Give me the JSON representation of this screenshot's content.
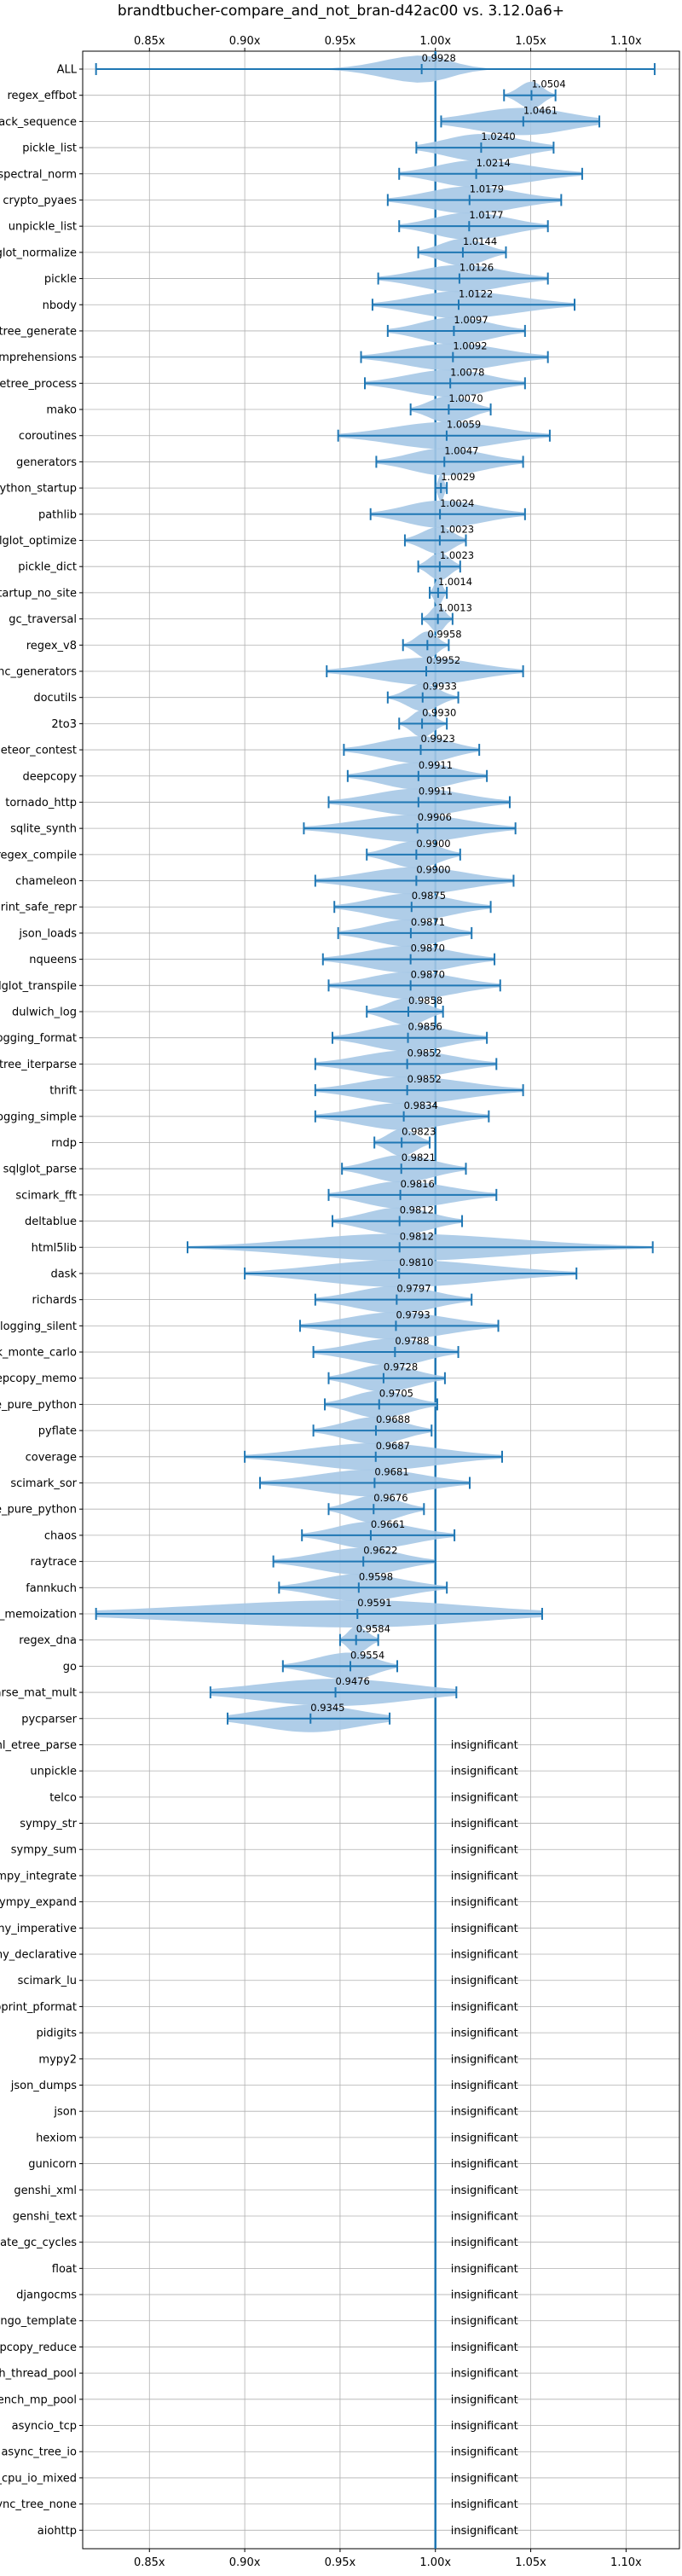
{
  "chart_data": {
    "type": "violin",
    "title": "brandtbucher-compare_and_not_bran-d42ac00 vs. 3.12.0a6+",
    "xlabel": "",
    "ylabel": "",
    "xlim": [
      0.815,
      1.128
    ],
    "x_ticks": [
      {
        "value": 0.85,
        "label": "0.85x"
      },
      {
        "value": 0.9,
        "label": "0.90x"
      },
      {
        "value": 0.95,
        "label": "0.95x"
      },
      {
        "value": 1.0,
        "label": "1.00x"
      },
      {
        "value": 1.05,
        "label": "1.05x"
      },
      {
        "value": 1.1,
        "label": "1.10x"
      }
    ],
    "reference_line": 1.0,
    "grid": true,
    "colors": {
      "line": "#1f77b4",
      "violin": "#a6c8e6",
      "grid": "#b0b0b0",
      "axis": "#000000"
    },
    "insignificant_label": "insignificant",
    "benchmarks": [
      {
        "name": "ALL",
        "mean": 0.9928,
        "label": "0.9928",
        "min": 0.822,
        "max": 1.115,
        "spread": 0.12
      },
      {
        "name": "regex_effbot",
        "mean": 1.0504,
        "label": "1.0504",
        "min": 1.036,
        "max": 1.063,
        "spread": 0.45
      },
      {
        "name": "unpack_sequence",
        "mean": 1.0461,
        "label": "1.0461",
        "min": 1.003,
        "max": 1.086,
        "spread": 0.6
      },
      {
        "name": "pickle_list",
        "mean": 1.024,
        "label": "1.0240",
        "min": 0.99,
        "max": 1.062,
        "spread": 0.55
      },
      {
        "name": "spectral_norm",
        "mean": 1.0214,
        "label": "1.0214",
        "min": 0.981,
        "max": 1.077,
        "spread": 0.5
      },
      {
        "name": "crypto_pyaes",
        "mean": 1.0179,
        "label": "1.0179",
        "min": 0.975,
        "max": 1.066,
        "spread": 0.5
      },
      {
        "name": "unpickle_list",
        "mean": 1.0177,
        "label": "1.0177",
        "min": 0.981,
        "max": 1.059,
        "spread": 0.5
      },
      {
        "name": "sqlglot_normalize",
        "mean": 1.0144,
        "label": "1.0144",
        "min": 0.991,
        "max": 1.037,
        "spread": 0.5
      },
      {
        "name": "pickle",
        "mean": 1.0126,
        "label": "1.0126",
        "min": 0.97,
        "max": 1.059,
        "spread": 0.5
      },
      {
        "name": "nbody",
        "mean": 1.0122,
        "label": "1.0122",
        "min": 0.967,
        "max": 1.073,
        "spread": 0.5
      },
      {
        "name": "xml_etree_generate",
        "mean": 1.0097,
        "label": "1.0097",
        "min": 0.975,
        "max": 1.047,
        "spread": 0.5
      },
      {
        "name": "comprehensions",
        "mean": 1.0092,
        "label": "1.0092",
        "min": 0.961,
        "max": 1.059,
        "spread": 0.5
      },
      {
        "name": "xml_etree_process",
        "mean": 1.0078,
        "label": "1.0078",
        "min": 0.963,
        "max": 1.047,
        "spread": 0.5
      },
      {
        "name": "mako",
        "mean": 1.007,
        "label": "1.0070",
        "min": 0.987,
        "max": 1.029,
        "spread": 0.5
      },
      {
        "name": "coroutines",
        "mean": 1.0059,
        "label": "1.0059",
        "min": 0.949,
        "max": 1.06,
        "spread": 0.5
      },
      {
        "name": "generators",
        "mean": 1.0047,
        "label": "1.0047",
        "min": 0.969,
        "max": 1.046,
        "spread": 0.5
      },
      {
        "name": "python_startup",
        "mean": 1.0029,
        "label": "1.0029",
        "min": 1.0,
        "max": 1.006,
        "spread": 0.45
      },
      {
        "name": "pathlib",
        "mean": 1.0024,
        "label": "1.0024",
        "min": 0.966,
        "max": 1.047,
        "spread": 0.5
      },
      {
        "name": "sqlglot_optimize",
        "mean": 1.0023,
        "label": "1.0023",
        "min": 0.984,
        "max": 1.016,
        "spread": 0.5
      },
      {
        "name": "pickle_dict",
        "mean": 1.0023,
        "label": "1.0023",
        "min": 0.991,
        "max": 1.013,
        "spread": 0.5
      },
      {
        "name": "python_startup_no_site",
        "mean": 1.0014,
        "label": "1.0014",
        "min": 0.997,
        "max": 1.006,
        "spread": 0.45
      },
      {
        "name": "gc_traversal",
        "mean": 1.0013,
        "label": "1.0013",
        "min": 0.993,
        "max": 1.009,
        "spread": 0.45
      },
      {
        "name": "regex_v8",
        "mean": 0.9958,
        "label": "0.9958",
        "min": 0.983,
        "max": 1.007,
        "spread": 0.45
      },
      {
        "name": "async_generators",
        "mean": 0.9952,
        "label": "0.9952",
        "min": 0.943,
        "max": 1.046,
        "spread": 0.5
      },
      {
        "name": "docutils",
        "mean": 0.9933,
        "label": "0.9933",
        "min": 0.975,
        "max": 1.012,
        "spread": 0.45
      },
      {
        "name": "2to3",
        "mean": 0.993,
        "label": "0.9930",
        "min": 0.981,
        "max": 1.006,
        "spread": 0.45
      },
      {
        "name": "meteor_contest",
        "mean": 0.9923,
        "label": "0.9923",
        "min": 0.952,
        "max": 1.023,
        "spread": 0.5
      },
      {
        "name": "deepcopy",
        "mean": 0.9911,
        "label": "0.9911",
        "min": 0.954,
        "max": 1.027,
        "spread": 0.5
      },
      {
        "name": "tornado_http",
        "mean": 0.9911,
        "label": "0.9911",
        "min": 0.944,
        "max": 1.039,
        "spread": 0.5
      },
      {
        "name": "sqlite_synth",
        "mean": 0.9906,
        "label": "0.9906",
        "min": 0.931,
        "max": 1.042,
        "spread": 0.5
      },
      {
        "name": "regex_compile",
        "mean": 0.99,
        "label": "0.9900",
        "min": 0.964,
        "max": 1.013,
        "spread": 0.5
      },
      {
        "name": "chameleon",
        "mean": 0.99,
        "label": "0.9900",
        "min": 0.937,
        "max": 1.041,
        "spread": 0.5
      },
      {
        "name": "pprint_safe_repr",
        "mean": 0.9875,
        "label": "0.9875",
        "min": 0.947,
        "max": 1.029,
        "spread": 0.5
      },
      {
        "name": "json_loads",
        "mean": 0.9871,
        "label": "0.9871",
        "min": 0.949,
        "max": 1.019,
        "spread": 0.5
      },
      {
        "name": "nqueens",
        "mean": 0.987,
        "label": "0.9870",
        "min": 0.941,
        "max": 1.031,
        "spread": 0.5
      },
      {
        "name": "sqlglot_transpile",
        "mean": 0.987,
        "label": "0.9870",
        "min": 0.944,
        "max": 1.034,
        "spread": 0.5
      },
      {
        "name": "dulwich_log",
        "mean": 0.9858,
        "label": "0.9858",
        "min": 0.964,
        "max": 1.004,
        "spread": 0.5
      },
      {
        "name": "logging_format",
        "mean": 0.9856,
        "label": "0.9856",
        "min": 0.946,
        "max": 1.027,
        "spread": 0.5
      },
      {
        "name": "xml_etree_iterparse",
        "mean": 0.9852,
        "label": "0.9852",
        "min": 0.937,
        "max": 1.032,
        "spread": 0.5
      },
      {
        "name": "thrift",
        "mean": 0.9852,
        "label": "0.9852",
        "min": 0.937,
        "max": 1.046,
        "spread": 0.5
      },
      {
        "name": "logging_simple",
        "mean": 0.9834,
        "label": "0.9834",
        "min": 0.937,
        "max": 1.028,
        "spread": 0.5
      },
      {
        "name": "rndp",
        "mean": 0.9823,
        "label": "0.9823",
        "min": 0.968,
        "max": 0.997,
        "spread": 0.5
      },
      {
        "name": "sqlglot_parse",
        "mean": 0.9821,
        "label": "0.9821",
        "min": 0.951,
        "max": 1.016,
        "spread": 0.5
      },
      {
        "name": "scimark_fft",
        "mean": 0.9816,
        "label": "0.9816",
        "min": 0.944,
        "max": 1.032,
        "spread": 0.5
      },
      {
        "name": "deltablue",
        "mean": 0.9812,
        "label": "0.9812",
        "min": 0.946,
        "max": 1.014,
        "spread": 0.5
      },
      {
        "name": "html5lib",
        "mean": 0.9812,
        "label": "0.9812",
        "min": 0.87,
        "max": 1.114,
        "spread": 0.45
      },
      {
        "name": "dask",
        "mean": 0.981,
        "label": "0.9810",
        "min": 0.9,
        "max": 1.074,
        "spread": 0.5
      },
      {
        "name": "richards",
        "mean": 0.9797,
        "label": "0.9797",
        "min": 0.937,
        "max": 1.019,
        "spread": 0.5
      },
      {
        "name": "logging_silent",
        "mean": 0.9793,
        "label": "0.9793",
        "min": 0.929,
        "max": 1.033,
        "spread": 0.5
      },
      {
        "name": "scimark_monte_carlo",
        "mean": 0.9788,
        "label": "0.9788",
        "min": 0.936,
        "max": 1.012,
        "spread": 0.5
      },
      {
        "name": "deepcopy_memo",
        "mean": 0.9728,
        "label": "0.9728",
        "min": 0.944,
        "max": 1.005,
        "spread": 0.5
      },
      {
        "name": "pickle_pure_python",
        "mean": 0.9705,
        "label": "0.9705",
        "min": 0.942,
        "max": 1.001,
        "spread": 0.5
      },
      {
        "name": "pyflate",
        "mean": 0.9688,
        "label": "0.9688",
        "min": 0.936,
        "max": 0.998,
        "spread": 0.5
      },
      {
        "name": "coverage",
        "mean": 0.9687,
        "label": "0.9687",
        "min": 0.9,
        "max": 1.035,
        "spread": 0.5
      },
      {
        "name": "scimark_sor",
        "mean": 0.9681,
        "label": "0.9681",
        "min": 0.908,
        "max": 1.018,
        "spread": 0.5
      },
      {
        "name": "unpickle_pure_python",
        "mean": 0.9676,
        "label": "0.9676",
        "min": 0.944,
        "max": 0.994,
        "spread": 0.5
      },
      {
        "name": "chaos",
        "mean": 0.9661,
        "label": "0.9661",
        "min": 0.93,
        "max": 1.01,
        "spread": 0.5
      },
      {
        "name": "raytrace",
        "mean": 0.9622,
        "label": "0.9622",
        "min": 0.915,
        "max": 1.0,
        "spread": 0.5
      },
      {
        "name": "fannkuch",
        "mean": 0.9598,
        "label": "0.9598",
        "min": 0.918,
        "max": 1.006,
        "spread": 0.5
      },
      {
        "name": "async_tree_memoization",
        "mean": 0.9591,
        "label": "0.9591",
        "min": 0.822,
        "max": 1.056,
        "spread": 0.6
      },
      {
        "name": "regex_dna",
        "mean": 0.9584,
        "label": "0.9584",
        "min": 0.95,
        "max": 0.97,
        "spread": 0.5
      },
      {
        "name": "go",
        "mean": 0.9554,
        "label": "0.9554",
        "min": 0.92,
        "max": 0.98,
        "spread": 0.5
      },
      {
        "name": "scimark_sparse_mat_mult",
        "mean": 0.9476,
        "label": "0.9476",
        "min": 0.882,
        "max": 1.011,
        "spread": 0.6
      },
      {
        "name": "pycparser",
        "mean": 0.9345,
        "label": "0.9345",
        "min": 0.891,
        "max": 0.976,
        "spread": 0.6
      },
      {
        "name": "xml_etree_parse",
        "insignificant": true
      },
      {
        "name": "unpickle",
        "insignificant": true
      },
      {
        "name": "telco",
        "insignificant": true
      },
      {
        "name": "sympy_str",
        "insignificant": true
      },
      {
        "name": "sympy_sum",
        "insignificant": true
      },
      {
        "name": "sympy_integrate",
        "insignificant": true
      },
      {
        "name": "sympy_expand",
        "insignificant": true
      },
      {
        "name": "sqlalchemy_imperative",
        "insignificant": true
      },
      {
        "name": "sqlalchemy_declarative",
        "insignificant": true
      },
      {
        "name": "scimark_lu",
        "insignificant": true
      },
      {
        "name": "pprint_pformat",
        "insignificant": true
      },
      {
        "name": "pidigits",
        "insignificant": true
      },
      {
        "name": "mypy2",
        "insignificant": true
      },
      {
        "name": "json_dumps",
        "insignificant": true
      },
      {
        "name": "json",
        "insignificant": true
      },
      {
        "name": "hexiom",
        "insignificant": true
      },
      {
        "name": "gunicorn",
        "insignificant": true
      },
      {
        "name": "genshi_xml",
        "insignificant": true
      },
      {
        "name": "genshi_text",
        "insignificant": true
      },
      {
        "name": "create_gc_cycles",
        "insignificant": true
      },
      {
        "name": "float",
        "insignificant": true
      },
      {
        "name": "djangocms",
        "insignificant": true
      },
      {
        "name": "django_template",
        "insignificant": true
      },
      {
        "name": "deepcopy_reduce",
        "insignificant": true
      },
      {
        "name": "bench_thread_pool",
        "insignificant": true
      },
      {
        "name": "bench_mp_pool",
        "insignificant": true
      },
      {
        "name": "asyncio_tcp",
        "insignificant": true
      },
      {
        "name": "async_tree_io",
        "insignificant": true
      },
      {
        "name": "async_tree_cpu_io_mixed",
        "insignificant": true
      },
      {
        "name": "async_tree_none",
        "insignificant": true
      },
      {
        "name": "aiohttp",
        "insignificant": true
      }
    ]
  }
}
